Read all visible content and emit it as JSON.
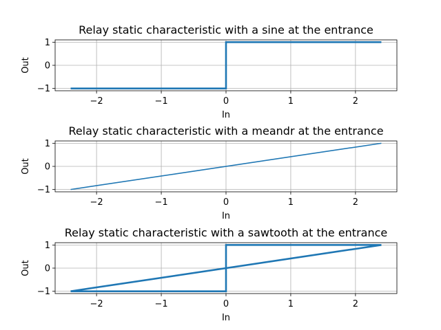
{
  "chart_data": [
    {
      "type": "line",
      "title": "Relay static characteristic with a sine at the entrance",
      "xlabel": "In",
      "ylabel": "Out",
      "xlim": [
        -2.64,
        2.64
      ],
      "ylim": [
        -1.1,
        1.1
      ],
      "xticks": [
        -2,
        -1,
        0,
        1,
        2
      ],
      "yticks": [
        -1,
        0,
        1
      ],
      "grid": true,
      "color": "#1f77b4",
      "series": [
        {
          "x": [
            -2.4,
            0,
            0,
            2.4
          ],
          "y": [
            -1,
            -1,
            1,
            1
          ]
        }
      ]
    },
    {
      "type": "line",
      "title": "Relay static characteristic with a meandr at the entrance",
      "xlabel": "In",
      "ylabel": "Out",
      "xlim": [
        -2.64,
        2.64
      ],
      "ylim": [
        -1.1,
        1.1
      ],
      "xticks": [
        -2,
        -1,
        0,
        1,
        2
      ],
      "yticks": [
        -1,
        0,
        1
      ],
      "grid": true,
      "color": "#1f77b4",
      "series": [
        {
          "x": [
            -2.4,
            2.4
          ],
          "y": [
            -1,
            1
          ]
        }
      ]
    },
    {
      "type": "line",
      "title": "Relay static characteristic with a sawtooth at the entrance",
      "xlabel": "In",
      "ylabel": "Out",
      "xlim": [
        -2.64,
        2.64
      ],
      "ylim": [
        -1.1,
        1.1
      ],
      "xticks": [
        -2,
        -1,
        0,
        1,
        2
      ],
      "yticks": [
        -1,
        0,
        1
      ],
      "grid": true,
      "color": "#1f77b4",
      "series": [
        {
          "x": [
            -2.4,
            0,
            0,
            2.4
          ],
          "y": [
            -1,
            -1,
            1,
            1
          ]
        },
        {
          "x": [
            -2.4,
            2.4
          ],
          "y": [
            -1,
            1
          ]
        }
      ]
    }
  ]
}
